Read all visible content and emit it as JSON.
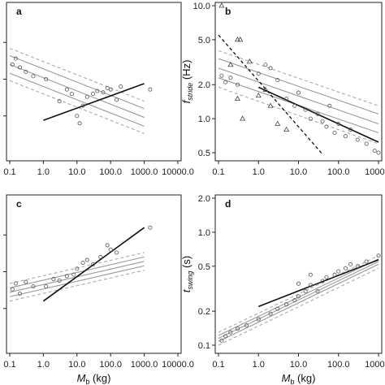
{
  "chart_data": [
    {
      "panel": "a",
      "type": "scatter",
      "xscale": "log",
      "yscale": "linear",
      "xlim": [
        0.1,
        10000.0
      ],
      "ylim": [
        0,
        1
      ],
      "xticks": [
        "0.1",
        "1.0",
        "10.0",
        "100.0",
        "1000.0",
        "10000.0"
      ],
      "xlabel": "",
      "ylabel": "",
      "points": [
        {
          "x": 0.12,
          "y": 0.6
        },
        {
          "x": 0.15,
          "y": 0.64
        },
        {
          "x": 0.2,
          "y": 0.58
        },
        {
          "x": 0.3,
          "y": 0.55
        },
        {
          "x": 0.5,
          "y": 0.52
        },
        {
          "x": 1.2,
          "y": 0.5
        },
        {
          "x": 3,
          "y": 0.35
        },
        {
          "x": 5,
          "y": 0.43
        },
        {
          "x": 7,
          "y": 0.4
        },
        {
          "x": 10,
          "y": 0.25
        },
        {
          "x": 12,
          "y": 0.2
        },
        {
          "x": 15,
          "y": 0.32
        },
        {
          "x": 20,
          "y": 0.38
        },
        {
          "x": 30,
          "y": 0.4
        },
        {
          "x": 40,
          "y": 0.42
        },
        {
          "x": 60,
          "y": 0.41
        },
        {
          "x": 80,
          "y": 0.44
        },
        {
          "x": 100,
          "y": 0.43
        },
        {
          "x": 150,
          "y": 0.36
        },
        {
          "x": 200,
          "y": 0.45
        },
        {
          "x": 1500,
          "y": 0.43
        }
      ],
      "fit_lines": [
        {
          "style": "dashed-gray",
          "x": [
            0.1,
            1000
          ],
          "y": [
            0.71,
            0.35
          ]
        },
        {
          "style": "solid-gray",
          "x": [
            0.1,
            1000
          ],
          "y": [
            0.66,
            0.3
          ]
        },
        {
          "style": "solid-gray",
          "x": [
            0.1,
            1000
          ],
          "y": [
            0.6,
            0.24
          ]
        },
        {
          "style": "solid-gray",
          "x": [
            0.1,
            1000
          ],
          "y": [
            0.54,
            0.18
          ]
        },
        {
          "style": "dashed-gray",
          "x": [
            0.1,
            1000
          ],
          "y": [
            0.49,
            0.13
          ]
        },
        {
          "style": "solid-black",
          "x": [
            1,
            1000
          ],
          "y": [
            0.22,
            0.47
          ]
        }
      ]
    },
    {
      "panel": "b",
      "type": "scatter",
      "xscale": "log",
      "yscale": "log",
      "xlim": [
        0.1,
        1000.0
      ],
      "ylim": [
        0.5,
        10.0
      ],
      "xticks": [
        "0.1",
        "1.0",
        "10.0",
        "100.0",
        "1000.0"
      ],
      "yticks": [
        "0.5",
        "1.0",
        "2.0",
        "5.0",
        "10.0"
      ],
      "xlabel": "",
      "ylabel": "f",
      "ylabel_sub": "stride",
      "ylabel_unit": " (Hz)",
      "triangles": [
        {
          "x": 0.12,
          "y": 10.0
        },
        {
          "x": 0.3,
          "y": 5.0
        },
        {
          "x": 0.35,
          "y": 5.0
        },
        {
          "x": 0.2,
          "y": 3.0
        },
        {
          "x": 0.6,
          "y": 3.2
        },
        {
          "x": 1.5,
          "y": 1.8
        },
        {
          "x": 1.0,
          "y": 1.6
        },
        {
          "x": 2.0,
          "y": 1.3
        },
        {
          "x": 0.4,
          "y": 1.0
        },
        {
          "x": 3.0,
          "y": 0.9
        },
        {
          "x": 5.0,
          "y": 0.8
        },
        {
          "x": 0.3,
          "y": 1.5
        }
      ],
      "points": [
        {
          "x": 0.12,
          "y": 2.4
        },
        {
          "x": 0.15,
          "y": 2.1
        },
        {
          "x": 0.2,
          "y": 2.3
        },
        {
          "x": 0.3,
          "y": 2.0
        },
        {
          "x": 1,
          "y": 2.5
        },
        {
          "x": 1.5,
          "y": 3.0
        },
        {
          "x": 2,
          "y": 2.8
        },
        {
          "x": 3,
          "y": 2.2
        },
        {
          "x": 5,
          "y": 1.5
        },
        {
          "x": 8,
          "y": 1.3
        },
        {
          "x": 10,
          "y": 1.7
        },
        {
          "x": 15,
          "y": 1.2
        },
        {
          "x": 20,
          "y": 1.0
        },
        {
          "x": 30,
          "y": 1.1
        },
        {
          "x": 40,
          "y": 0.95
        },
        {
          "x": 50,
          "y": 0.85
        },
        {
          "x": 60,
          "y": 1.3
        },
        {
          "x": 80,
          "y": 0.75
        },
        {
          "x": 100,
          "y": 0.9
        },
        {
          "x": 150,
          "y": 0.7
        },
        {
          "x": 200,
          "y": 0.8
        },
        {
          "x": 300,
          "y": 0.65
        },
        {
          "x": 500,
          "y": 0.6
        },
        {
          "x": 800,
          "y": 0.52
        },
        {
          "x": 1000,
          "y": 0.5
        }
      ],
      "fit_lines": [
        {
          "style": "dashed-gray",
          "x": [
            0.1,
            1000
          ],
          "y": [
            4.0,
            1.3
          ]
        },
        {
          "style": "solid-gray",
          "x": [
            0.1,
            1000
          ],
          "y": [
            3.4,
            1.1
          ]
        },
        {
          "style": "solid-gray",
          "x": [
            0.1,
            1000
          ],
          "y": [
            2.8,
            0.9
          ]
        },
        {
          "style": "solid-gray",
          "x": [
            0.1,
            1000
          ],
          "y": [
            2.3,
            0.75
          ]
        },
        {
          "style": "dashed-gray",
          "x": [
            0.1,
            1000
          ],
          "y": [
            1.9,
            0.6
          ]
        },
        {
          "style": "solid-black",
          "x": [
            1,
            1000
          ],
          "y": [
            1.9,
            0.62
          ]
        },
        {
          "style": "dashed-black",
          "x": [
            0.1,
            40
          ],
          "y": [
            5.5,
            0.45
          ]
        }
      ]
    },
    {
      "panel": "c",
      "type": "scatter",
      "xscale": "log",
      "yscale": "linear",
      "xlim": [
        0.1,
        10000.0
      ],
      "ylim": [
        0,
        1
      ],
      "xticks": [
        "0.1",
        "1.0",
        "10.0",
        "100.0",
        "1000.0",
        "10000.0"
      ],
      "xlabel": "M",
      "xlabel_sub": "b",
      "xlabel_unit": " (kg)",
      "ylabel": "",
      "points": [
        {
          "x": 0.12,
          "y": 0.38
        },
        {
          "x": 0.15,
          "y": 0.42
        },
        {
          "x": 0.2,
          "y": 0.35
        },
        {
          "x": 0.3,
          "y": 0.43
        },
        {
          "x": 0.5,
          "y": 0.4
        },
        {
          "x": 1.2,
          "y": 0.4
        },
        {
          "x": 2,
          "y": 0.45
        },
        {
          "x": 3,
          "y": 0.44
        },
        {
          "x": 5,
          "y": 0.47
        },
        {
          "x": 8,
          "y": 0.48
        },
        {
          "x": 10,
          "y": 0.52
        },
        {
          "x": 15,
          "y": 0.56
        },
        {
          "x": 20,
          "y": 0.58
        },
        {
          "x": 30,
          "y": 0.55
        },
        {
          "x": 50,
          "y": 0.6
        },
        {
          "x": 80,
          "y": 0.68
        },
        {
          "x": 100,
          "y": 0.65
        },
        {
          "x": 150,
          "y": 0.63
        },
        {
          "x": 1500,
          "y": 0.8
        }
      ],
      "fit_lines": [
        {
          "style": "dashed-gray",
          "x": [
            0.1,
            1000
          ],
          "y": [
            0.42,
            0.63
          ]
        },
        {
          "style": "solid-gray",
          "x": [
            0.1,
            1000
          ],
          "y": [
            0.39,
            0.6
          ]
        },
        {
          "style": "solid-gray",
          "x": [
            0.1,
            1000
          ],
          "y": [
            0.36,
            0.57
          ]
        },
        {
          "style": "solid-gray",
          "x": [
            0.1,
            1000
          ],
          "y": [
            0.33,
            0.54
          ]
        },
        {
          "style": "dashed-gray",
          "x": [
            0.1,
            1000
          ],
          "y": [
            0.3,
            0.51
          ]
        },
        {
          "style": "solid-black",
          "x": [
            1,
            1000
          ],
          "y": [
            0.3,
            0.8
          ]
        }
      ]
    },
    {
      "panel": "d",
      "type": "scatter",
      "xscale": "log",
      "yscale": "log",
      "xlim": [
        0.1,
        1000.0
      ],
      "ylim": [
        0.1,
        2.0
      ],
      "xticks": [
        "0.1",
        "1.0",
        "10.0",
        "100.0",
        "1000.0"
      ],
      "yticks": [
        "0.1",
        "0.2",
        "0.5",
        "1.0",
        "2.0"
      ],
      "xlabel": "M",
      "xlabel_sub": "b",
      "xlabel_unit": " (kg)",
      "ylabel": "t",
      "ylabel_sub": "swing",
      "ylabel_unit": " (s)",
      "points": [
        {
          "x": 0.12,
          "y": 0.11
        },
        {
          "x": 0.15,
          "y": 0.12
        },
        {
          "x": 0.2,
          "y": 0.13
        },
        {
          "x": 0.3,
          "y": 0.14
        },
        {
          "x": 0.5,
          "y": 0.15
        },
        {
          "x": 1.0,
          "y": 0.17
        },
        {
          "x": 2,
          "y": 0.19
        },
        {
          "x": 3,
          "y": 0.21
        },
        {
          "x": 5,
          "y": 0.23
        },
        {
          "x": 8,
          "y": 0.25
        },
        {
          "x": 10,
          "y": 0.27
        },
        {
          "x": 15,
          "y": 0.3
        },
        {
          "x": 20,
          "y": 0.34
        },
        {
          "x": 30,
          "y": 0.3
        },
        {
          "x": 40,
          "y": 0.37
        },
        {
          "x": 50,
          "y": 0.4
        },
        {
          "x": 80,
          "y": 0.42
        },
        {
          "x": 100,
          "y": 0.45
        },
        {
          "x": 150,
          "y": 0.48
        },
        {
          "x": 200,
          "y": 0.52
        },
        {
          "x": 300,
          "y": 0.5
        },
        {
          "x": 500,
          "y": 0.55
        },
        {
          "x": 1000,
          "y": 0.62
        },
        {
          "x": 20,
          "y": 0.42
        },
        {
          "x": 10,
          "y": 0.35
        }
      ],
      "fit_lines": [
        {
          "style": "dashed-gray",
          "x": [
            0.1,
            1000
          ],
          "y": [
            0.13,
            0.62
          ]
        },
        {
          "style": "solid-gray",
          "x": [
            0.1,
            1000
          ],
          "y": [
            0.122,
            0.58
          ]
        },
        {
          "style": "solid-gray",
          "x": [
            0.1,
            1000
          ],
          "y": [
            0.115,
            0.55
          ]
        },
        {
          "style": "solid-gray",
          "x": [
            0.1,
            1000
          ],
          "y": [
            0.108,
            0.52
          ]
        },
        {
          "style": "dashed-gray",
          "x": [
            0.1,
            1000
          ],
          "y": [
            0.1,
            0.48
          ]
        },
        {
          "style": "solid-black",
          "x": [
            1,
            1000
          ],
          "y": [
            0.22,
            0.57
          ]
        }
      ]
    }
  ]
}
